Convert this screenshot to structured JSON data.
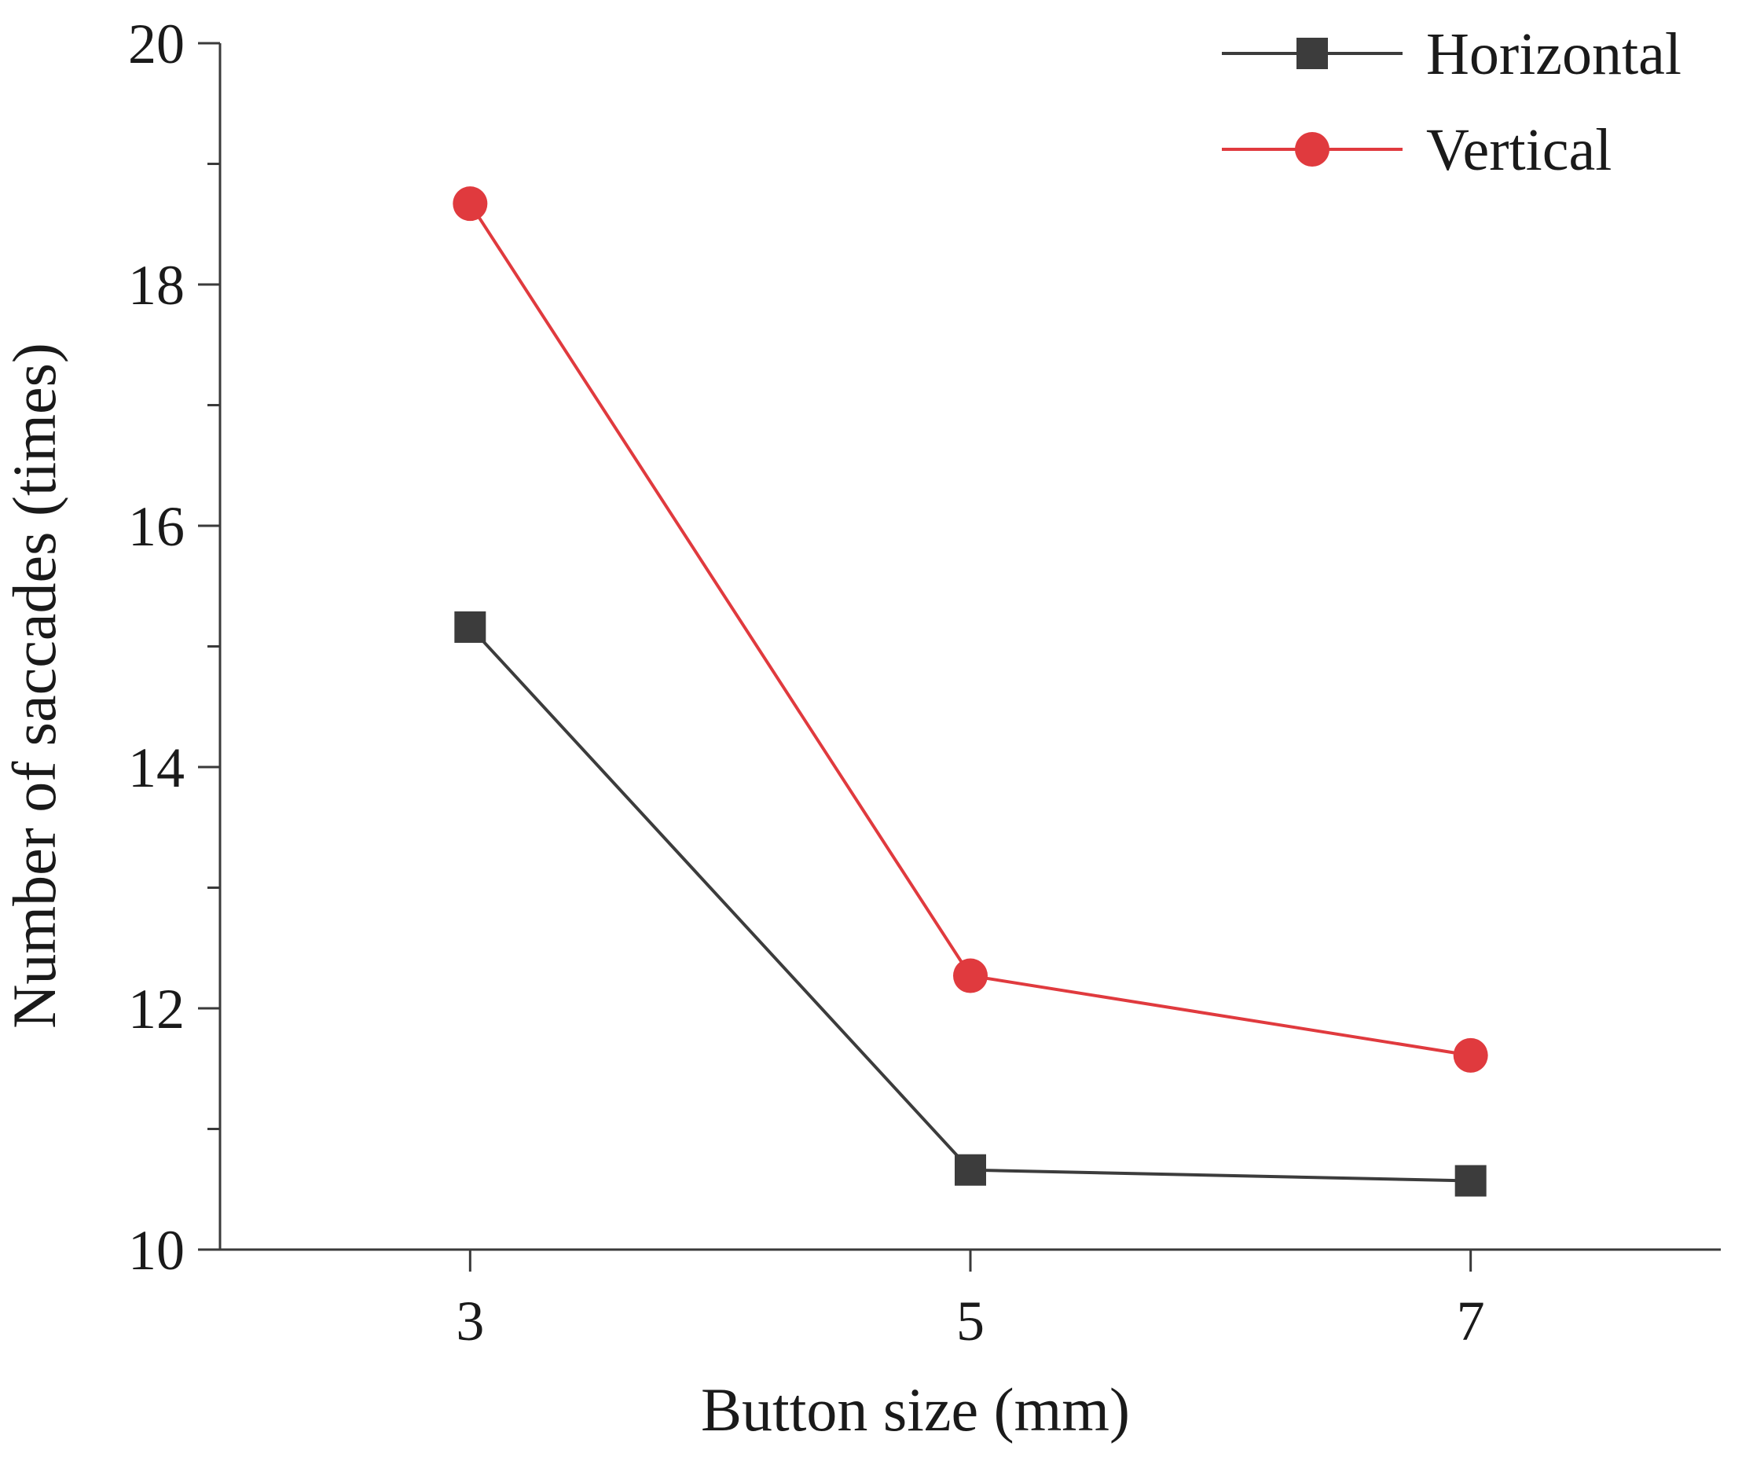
{
  "chart_data": {
    "type": "line",
    "xlabel": "Button size (mm)",
    "ylabel": "Number of saccades (times)",
    "x_ticks": [
      "3",
      "5",
      "7"
    ],
    "y_ticks": [
      "10",
      "12",
      "14",
      "16",
      "18",
      "20"
    ],
    "x": [
      3,
      5,
      7
    ],
    "xlim": [
      2,
      8
    ],
    "ylim": [
      10,
      20
    ],
    "y_minor_step": 1,
    "grid": false,
    "legend_position": "top-right",
    "series": [
      {
        "name": "Horizontal",
        "values": [
          15.16,
          10.66,
          10.57
        ],
        "color": "#3c3c3c",
        "marker": "square"
      },
      {
        "name": "Vertical",
        "values": [
          18.67,
          12.27,
          11.61
        ],
        "color": "#e03a3e",
        "marker": "circle"
      }
    ]
  }
}
